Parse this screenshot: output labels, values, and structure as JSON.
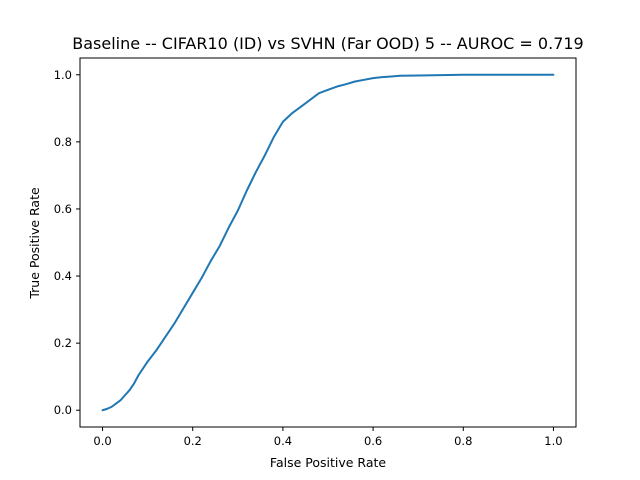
{
  "chart_data": {
    "type": "line",
    "title": "Baseline -- CIFAR10 (ID) vs SVHN (Far OOD) 5 -- AUROC = 0.719",
    "xlabel": "False Positive Rate",
    "ylabel": "True Positive Rate",
    "xlim": [
      -0.05,
      1.05
    ],
    "ylim": [
      -0.05,
      1.05
    ],
    "xticks": [
      "0.0",
      "0.2",
      "0.4",
      "0.6",
      "0.8",
      "1.0"
    ],
    "yticks": [
      "0.0",
      "0.2",
      "0.4",
      "0.6",
      "0.8",
      "1.0"
    ],
    "grid": false,
    "legend": "none",
    "series": [
      {
        "color": "#1f77b4",
        "x": [
          0.0,
          0.01,
          0.02,
          0.03,
          0.04,
          0.05,
          0.06,
          0.07,
          0.08,
          0.09,
          0.1,
          0.12,
          0.14,
          0.16,
          0.18,
          0.2,
          0.22,
          0.24,
          0.26,
          0.28,
          0.3,
          0.32,
          0.34,
          0.36,
          0.38,
          0.4,
          0.42,
          0.44,
          0.46,
          0.48,
          0.5,
          0.52,
          0.54,
          0.56,
          0.58,
          0.6,
          0.62,
          0.64,
          0.66,
          0.7,
          0.75,
          0.8,
          0.9,
          1.0
        ],
        "y": [
          0.0,
          0.004,
          0.01,
          0.02,
          0.03,
          0.045,
          0.06,
          0.08,
          0.105,
          0.125,
          0.145,
          0.18,
          0.22,
          0.26,
          0.305,
          0.35,
          0.395,
          0.445,
          0.49,
          0.545,
          0.595,
          0.655,
          0.71,
          0.76,
          0.815,
          0.86,
          0.885,
          0.905,
          0.925,
          0.945,
          0.955,
          0.965,
          0.972,
          0.98,
          0.985,
          0.99,
          0.993,
          0.995,
          0.997,
          0.998,
          0.999,
          1.0,
          1.0,
          1.0
        ]
      }
    ]
  }
}
